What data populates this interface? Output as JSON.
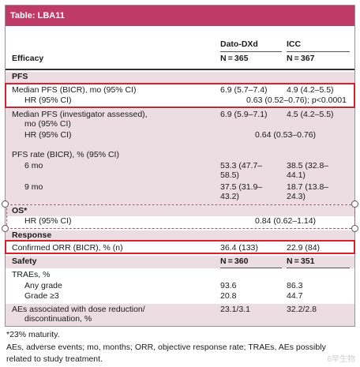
{
  "title": "Table: LBA11",
  "columns": {
    "col1": "Dato-DXd",
    "col2": "ICC"
  },
  "header": {
    "efficacy": "Efficacy",
    "n1": "N = 365",
    "n2": "N = 367"
  },
  "pfs": {
    "section": "PFS",
    "median_bicr_label": "Median PFS (BICR), mo (95% CI)",
    "median_bicr_v1": "6.9 (5.7–7.4)",
    "median_bicr_v2": "4.9 (4.2–5.5)",
    "hr_bicr_label": "HR (95% CI)",
    "hr_bicr_value": "0.63 (0.52–0.76); p<0.0001",
    "median_inv_label_1": "Median PFS (investigator assessed),",
    "median_inv_label_2": "mo (95% CI)",
    "median_inv_v1": "6.9 (5.9–7.1)",
    "median_inv_v2": "4.5 (4.2–5.5)",
    "hr_inv_label": "HR (95% CI)",
    "hr_inv_value": "0.64 (0.53–0.76)",
    "rate_label": "PFS rate (BICR), % (95% CI)",
    "six_mo_label": "6 mo",
    "six_mo_v1_a": "53.3 (47.7–",
    "six_mo_v1_b": "58.5)",
    "six_mo_v2_a": "38.5 (32.8–",
    "six_mo_v2_b": "44.1)",
    "nine_mo_label": "9 mo",
    "nine_mo_v1_a": "37.5 (31.9–",
    "nine_mo_v1_b": "43.2)",
    "nine_mo_v2_a": "18.7 (13.8–",
    "nine_mo_v2_b": "24.3)"
  },
  "os": {
    "section": "OS*",
    "hr_label": "HR (95% CI)",
    "hr_value": "0.84 (0.62–1.14)"
  },
  "response": {
    "section": "Response",
    "orr_label": "Confirmed ORR (BICR), % (n)",
    "orr_v1": "36.4 (133)",
    "orr_v2": "22.9 (84)"
  },
  "safety": {
    "section": "Safety",
    "n1": "N = 360",
    "n2": "N = 351",
    "traes_label": "TRAEs, %",
    "any_grade_label": "Any grade",
    "any_grade_v1": "93.6",
    "any_grade_v2": "86.3",
    "grade3_label": "Grade ≥3",
    "grade3_v1": "20.8",
    "grade3_v2": "44.7",
    "ae_label_1": "AEs associated with dose reduction/",
    "ae_label_2": "discontinuation, %",
    "ae_v1": "23.1/3.1",
    "ae_v2": "32.2/2.8"
  },
  "footnotes": {
    "line1": "*23% maturity.",
    "line2": "AEs, adverse events; mo, months; ORR, objective response rate; TRAEs, AEs possibly",
    "line3": "related to study treatment."
  },
  "watermark": "6早生物",
  "colors": {
    "title_bg": "#bf3a67",
    "band_bg": "#ecdde3",
    "highlight": "#d9202b"
  }
}
